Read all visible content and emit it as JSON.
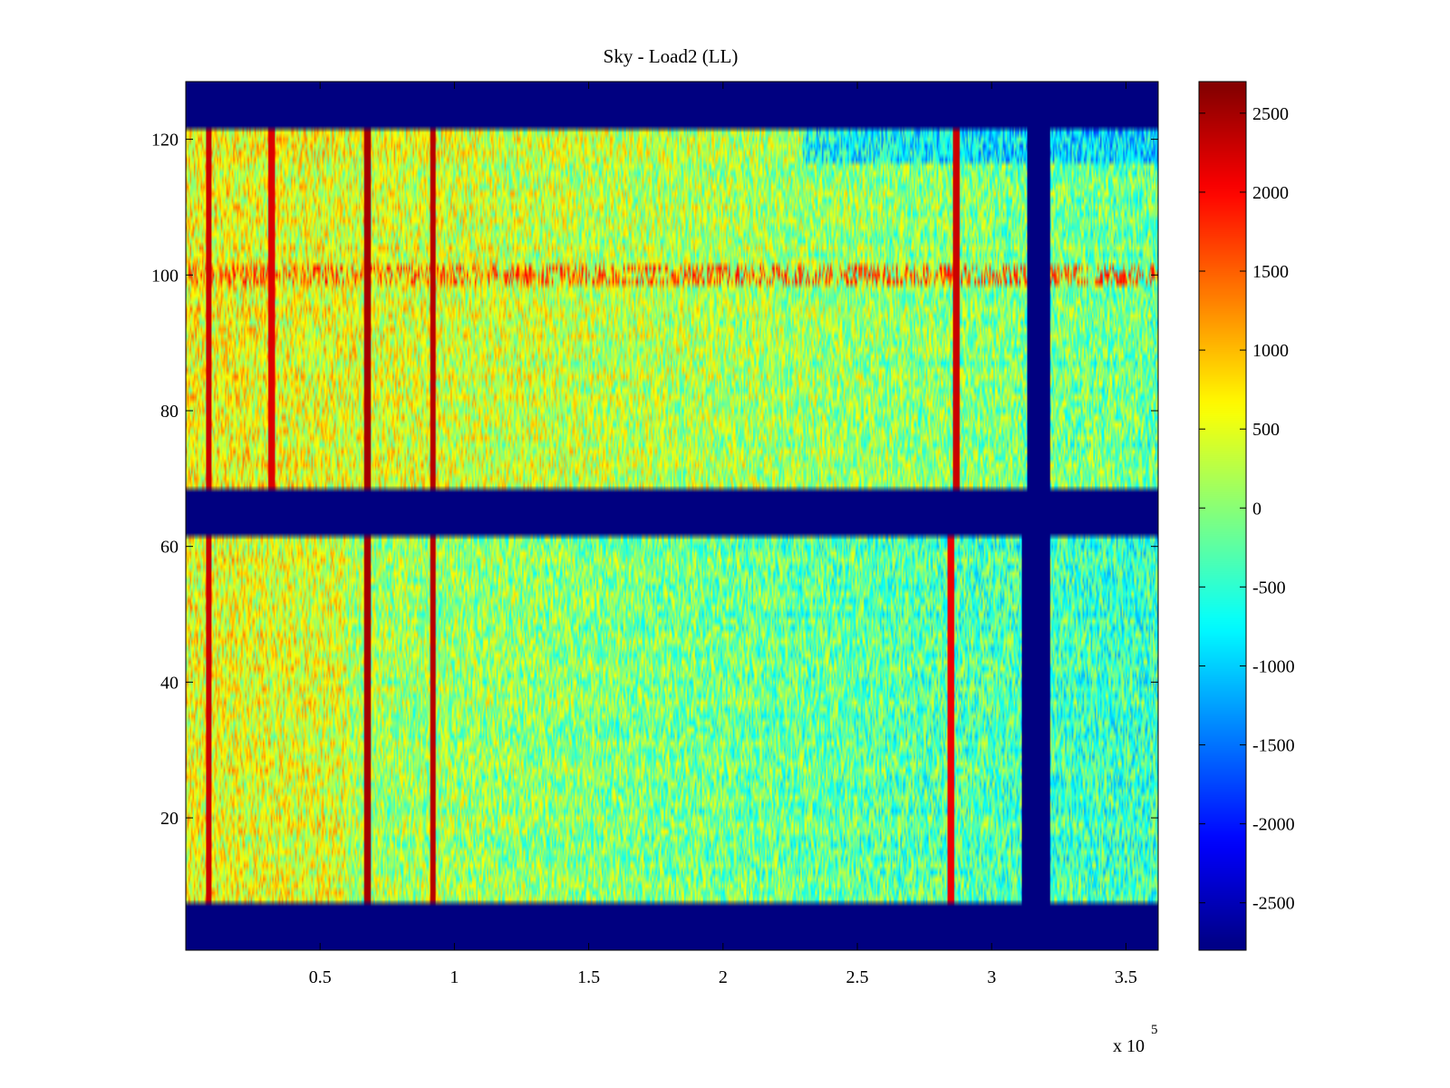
{
  "chart_data": {
    "type": "heatmap",
    "title": "Sky - Load2 (LL)",
    "xlabel": "",
    "ylabel": "",
    "xlim": [
      0,
      3.62
    ],
    "ylim": [
      0.5,
      128.5
    ],
    "x_exponent_label": "x 10",
    "x_exponent_power": "5",
    "xticks": [
      0.5,
      1,
      1.5,
      2,
      2.5,
      3,
      3.5
    ],
    "xtick_labels": [
      "0.5",
      "1",
      "1.5",
      "2",
      "2.5",
      "3",
      "3.5"
    ],
    "yticks": [
      20,
      40,
      60,
      80,
      100,
      120
    ],
    "ytick_labels": [
      "20",
      "40",
      "60",
      "80",
      "100",
      "120"
    ],
    "clim": [
      -2800,
      2700
    ],
    "colorbar_ticks": [
      2500,
      2000,
      1500,
      1000,
      500,
      0,
      -500,
      -1000,
      -1500,
      -2000,
      -2500
    ],
    "colorbar_tick_labels": [
      "2500",
      "2000",
      "1500",
      "1000",
      "500",
      "0",
      "-500",
      "-1000",
      "-1500",
      "-2000",
      "-2500"
    ],
    "colormap": "jet",
    "background_value": -2800,
    "valid_row_bands": [
      [
        8,
        61
      ],
      [
        69,
        121
      ]
    ],
    "masked_row_bands": [
      [
        1,
        7
      ],
      [
        62,
        68
      ],
      [
        122,
        128
      ]
    ],
    "masked_column_band_lower": [
      3.11,
      3.22
    ],
    "masked_column_band_upper": [
      3.13,
      3.22
    ],
    "hot_columns": [
      {
        "x": 0.085,
        "value": 2300
      },
      {
        "x": 0.32,
        "value": 2200,
        "rows": [
          69,
          121
        ]
      },
      {
        "x": 0.675,
        "value": 2500
      },
      {
        "x": 0.92,
        "value": 2400
      },
      {
        "x": 2.85,
        "value": 2100,
        "rows": [
          8,
          61
        ]
      },
      {
        "x": 2.87,
        "value": 2300,
        "rows": [
          69,
          121
        ]
      }
    ],
    "hot_row": {
      "y": 100,
      "value": 1700
    },
    "sky_value_upper_rows": 600,
    "sky_value_lower_rows": 300
  }
}
